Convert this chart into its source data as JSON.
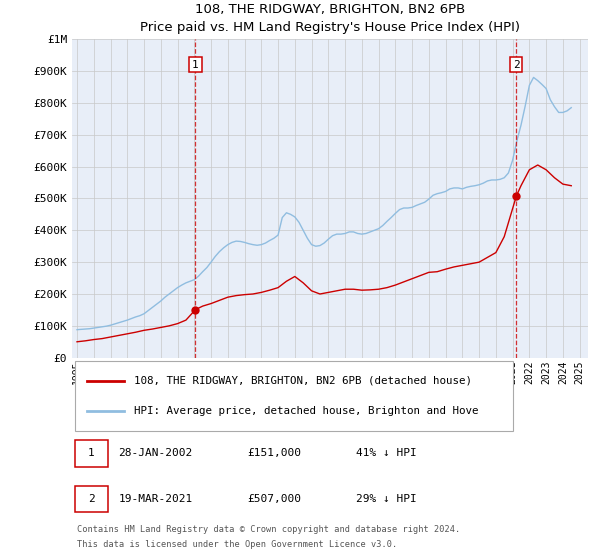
{
  "title": "108, THE RIDGWAY, BRIGHTON, BN2 6PB",
  "subtitle": "Price paid vs. HM Land Registry's House Price Index (HPI)",
  "background_color": "#e8eef8",
  "hpi_color": "#90bde0",
  "price_color": "#cc0000",
  "vline_color": "#cc0000",
  "marker_color": "#cc0000",
  "xmin": 1994.7,
  "xmax": 2025.5,
  "ymin": 0,
  "ymax": 1000000,
  "yticks": [
    0,
    100000,
    200000,
    300000,
    400000,
    500000,
    600000,
    700000,
    800000,
    900000,
    1000000
  ],
  "ytick_labels": [
    "£0",
    "£100K",
    "£200K",
    "£300K",
    "£400K",
    "£500K",
    "£600K",
    "£700K",
    "£800K",
    "£900K",
    "£1M"
  ],
  "xtick_years": [
    1995,
    1996,
    1997,
    1998,
    1999,
    2000,
    2001,
    2002,
    2003,
    2004,
    2005,
    2006,
    2007,
    2008,
    2009,
    2010,
    2011,
    2012,
    2013,
    2014,
    2015,
    2016,
    2017,
    2018,
    2019,
    2020,
    2021,
    2022,
    2023,
    2024,
    2025
  ],
  "sale1_x": 2002.07,
  "sale1_y": 151000,
  "sale1_label": "1",
  "sale2_x": 2021.22,
  "sale2_y": 507000,
  "sale2_label": "2",
  "legend_line1": "108, THE RIDGWAY, BRIGHTON, BN2 6PB (detached house)",
  "legend_line2": "HPI: Average price, detached house, Brighton and Hove",
  "footnote1": "Contains HM Land Registry data © Crown copyright and database right 2024.",
  "footnote2": "This data is licensed under the Open Government Licence v3.0.",
  "ann1_date": "28-JAN-2002",
  "ann1_price": "£151,000",
  "ann1_hpi": "41% ↓ HPI",
  "ann2_date": "19-MAR-2021",
  "ann2_price": "£507,000",
  "ann2_hpi": "29% ↓ HPI",
  "hpi_data_x": [
    1995.0,
    1995.25,
    1995.5,
    1995.75,
    1996.0,
    1996.25,
    1996.5,
    1996.75,
    1997.0,
    1997.25,
    1997.5,
    1997.75,
    1998.0,
    1998.25,
    1998.5,
    1998.75,
    1999.0,
    1999.25,
    1999.5,
    1999.75,
    2000.0,
    2000.25,
    2000.5,
    2000.75,
    2001.0,
    2001.25,
    2001.5,
    2001.75,
    2002.0,
    2002.25,
    2002.5,
    2002.75,
    2003.0,
    2003.25,
    2003.5,
    2003.75,
    2004.0,
    2004.25,
    2004.5,
    2004.75,
    2005.0,
    2005.25,
    2005.5,
    2005.75,
    2006.0,
    2006.25,
    2006.5,
    2006.75,
    2007.0,
    2007.25,
    2007.5,
    2007.75,
    2008.0,
    2008.25,
    2008.5,
    2008.75,
    2009.0,
    2009.25,
    2009.5,
    2009.75,
    2010.0,
    2010.25,
    2010.5,
    2010.75,
    2011.0,
    2011.25,
    2011.5,
    2011.75,
    2012.0,
    2012.25,
    2012.5,
    2012.75,
    2013.0,
    2013.25,
    2013.5,
    2013.75,
    2014.0,
    2014.25,
    2014.5,
    2014.75,
    2015.0,
    2015.25,
    2015.5,
    2015.75,
    2016.0,
    2016.25,
    2016.5,
    2016.75,
    2017.0,
    2017.25,
    2017.5,
    2017.75,
    2018.0,
    2018.25,
    2018.5,
    2018.75,
    2019.0,
    2019.25,
    2019.5,
    2019.75,
    2020.0,
    2020.25,
    2020.5,
    2020.75,
    2021.0,
    2021.25,
    2021.5,
    2021.75,
    2022.0,
    2022.25,
    2022.5,
    2022.75,
    2023.0,
    2023.25,
    2023.5,
    2023.75,
    2024.0,
    2024.25,
    2024.5
  ],
  "hpi_data_y": [
    88000,
    89000,
    90000,
    91000,
    93000,
    95000,
    97000,
    99000,
    102000,
    106000,
    110000,
    114000,
    118000,
    123000,
    128000,
    132000,
    138000,
    148000,
    158000,
    168000,
    178000,
    190000,
    200000,
    210000,
    220000,
    228000,
    235000,
    240000,
    245000,
    256000,
    270000,
    283000,
    300000,
    318000,
    333000,
    345000,
    355000,
    362000,
    366000,
    365000,
    362000,
    358000,
    355000,
    353000,
    355000,
    360000,
    368000,
    375000,
    385000,
    440000,
    455000,
    450000,
    442000,
    425000,
    400000,
    375000,
    355000,
    350000,
    352000,
    360000,
    372000,
    383000,
    388000,
    388000,
    390000,
    395000,
    395000,
    390000,
    388000,
    390000,
    395000,
    400000,
    405000,
    415000,
    428000,
    440000,
    453000,
    465000,
    470000,
    470000,
    472000,
    478000,
    483000,
    488000,
    498000,
    510000,
    515000,
    518000,
    522000,
    530000,
    533000,
    533000,
    530000,
    535000,
    538000,
    540000,
    543000,
    548000,
    555000,
    558000,
    558000,
    560000,
    565000,
    580000,
    620000,
    680000,
    730000,
    790000,
    855000,
    880000,
    870000,
    858000,
    845000,
    810000,
    788000,
    770000,
    770000,
    775000,
    785000
  ],
  "price_data_x": [
    1995.0,
    1995.5,
    1996.0,
    1996.5,
    1997.0,
    1997.5,
    1998.0,
    1998.5,
    1999.0,
    1999.5,
    2000.0,
    2000.5,
    2001.0,
    2001.5,
    2002.07,
    2002.5,
    2003.0,
    2003.5,
    2004.0,
    2004.5,
    2005.0,
    2005.5,
    2006.0,
    2006.5,
    2007.0,
    2007.5,
    2008.0,
    2008.5,
    2009.0,
    2009.5,
    2010.0,
    2010.5,
    2011.0,
    2011.5,
    2012.0,
    2012.5,
    2013.0,
    2013.5,
    2014.0,
    2014.5,
    2015.0,
    2015.5,
    2016.0,
    2016.5,
    2017.0,
    2017.5,
    2018.0,
    2018.5,
    2019.0,
    2019.5,
    2020.0,
    2020.5,
    2021.22,
    2021.5,
    2022.0,
    2022.5,
    2023.0,
    2023.5,
    2024.0,
    2024.5
  ],
  "price_data_y": [
    50000,
    53000,
    57000,
    60000,
    65000,
    70000,
    75000,
    80000,
    86000,
    90000,
    95000,
    100000,
    107000,
    118000,
    151000,
    162000,
    170000,
    180000,
    190000,
    195000,
    198000,
    200000,
    205000,
    212000,
    220000,
    240000,
    255000,
    235000,
    210000,
    200000,
    205000,
    210000,
    215000,
    215000,
    212000,
    213000,
    215000,
    220000,
    228000,
    238000,
    248000,
    258000,
    268000,
    270000,
    278000,
    285000,
    290000,
    295000,
    300000,
    315000,
    330000,
    380000,
    507000,
    540000,
    590000,
    605000,
    590000,
    565000,
    545000,
    540000
  ]
}
